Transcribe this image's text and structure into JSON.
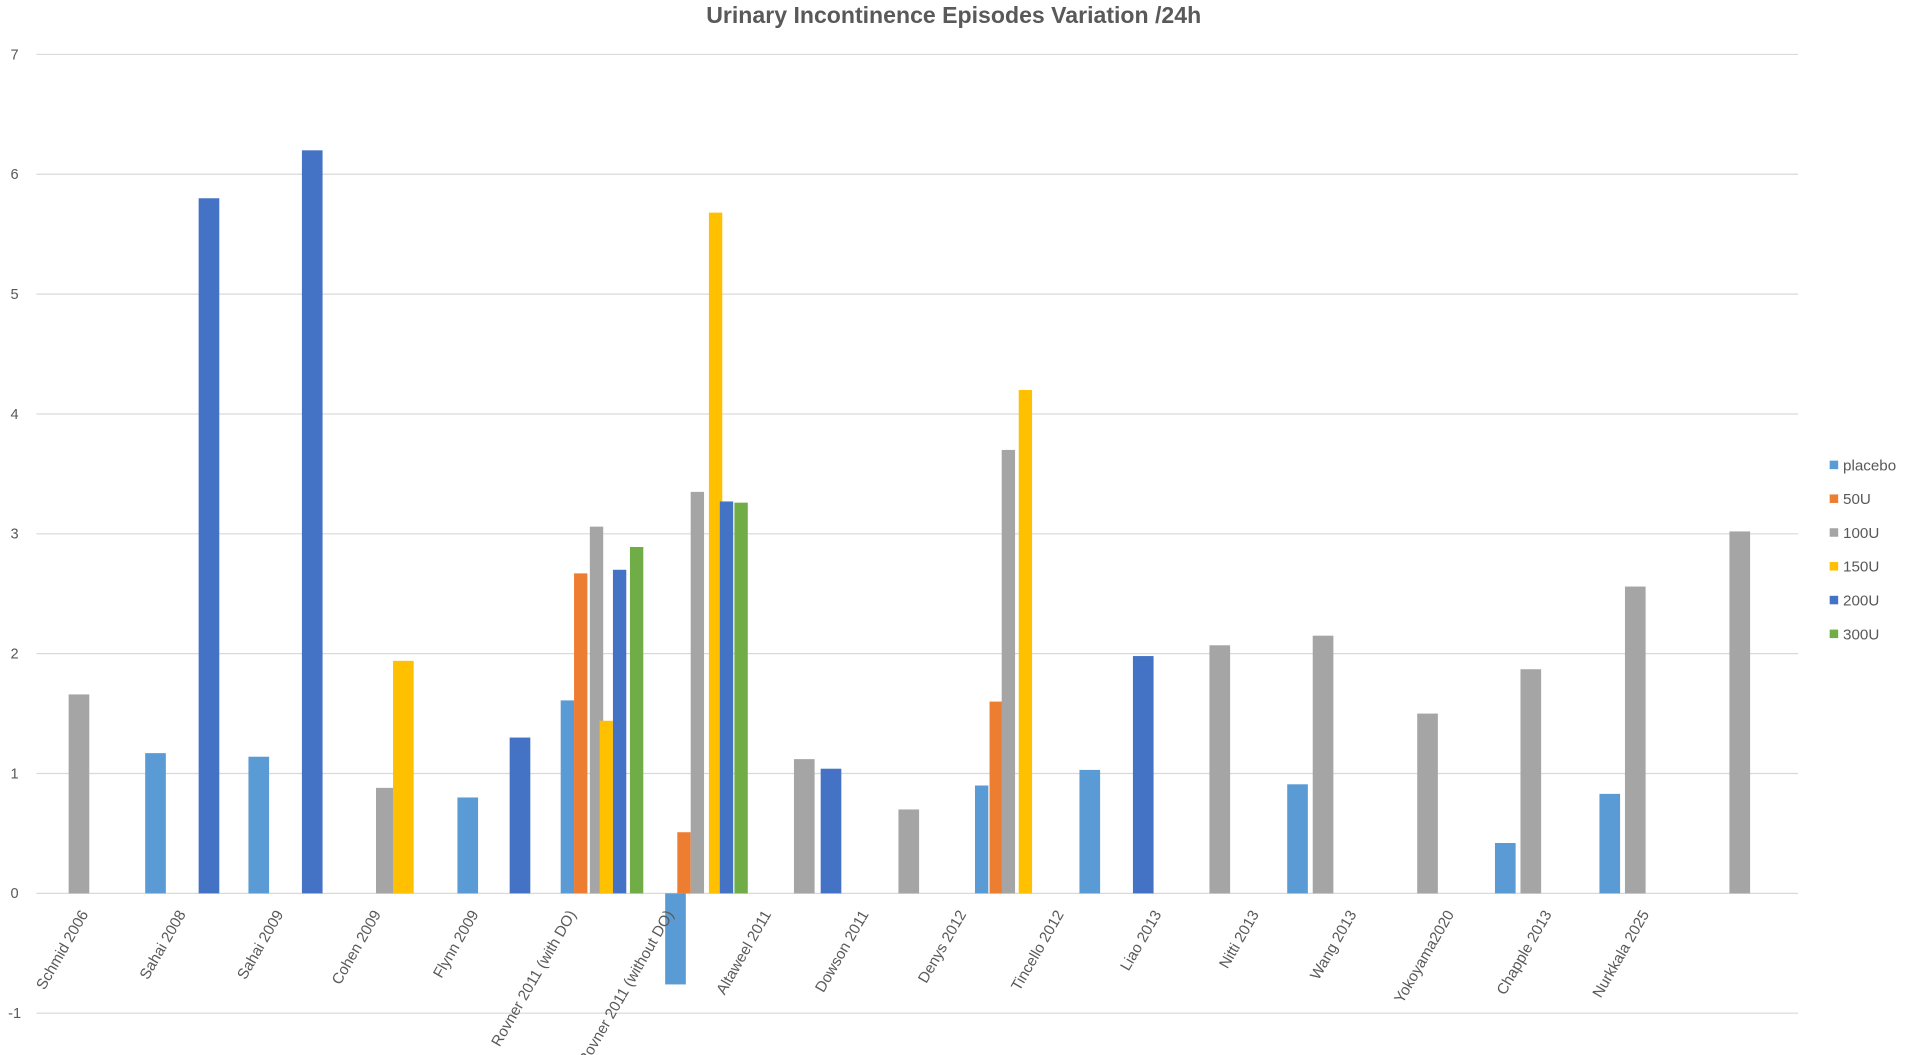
{
  "chart_data": {
    "type": "bar",
    "title": "Urinary Incontinence Episodes Variation /24h",
    "xlabel": "",
    "ylabel": "",
    "ylim": [
      -1,
      7
    ],
    "yticks": [
      "-1",
      "0",
      "1",
      "2",
      "3",
      "4",
      "5",
      "6",
      "7"
    ],
    "grid": true,
    "legend_position": "right",
    "categories": [
      "Schmid 2006",
      "Sahai 2008",
      "Sahai 2009",
      "Cohen 2009",
      "Flynn 2009",
      "Rovner 2011 (with DO)",
      "Rovner 2011 (without DO)",
      "Altaweel 2011",
      "Dowson 2011",
      "Denys 2012",
      "Tincello 2012",
      "Liao 2013",
      "Nitti 2013",
      "Wang 2013",
      "Yokoyama2020",
      "Chapple 2013",
      "Nurkkala 2025"
    ],
    "series": [
      {
        "name": "placebo",
        "color": "#5B9BD5",
        "values": [
          null,
          1.17,
          1.14,
          null,
          0.8,
          1.61,
          -0.76,
          null,
          null,
          0.9,
          1.03,
          null,
          0.91,
          null,
          0.42,
          0.83,
          null
        ]
      },
      {
        "name": "50U",
        "color": "#ED7D31",
        "values": [
          null,
          null,
          null,
          null,
          null,
          2.67,
          0.51,
          null,
          null,
          1.6,
          null,
          null,
          null,
          null,
          null,
          null,
          null
        ]
      },
      {
        "name": "100U",
        "color": "#A5A5A5",
        "values": [
          1.66,
          null,
          null,
          0.88,
          null,
          3.06,
          3.35,
          1.12,
          0.7,
          3.7,
          null,
          2.07,
          2.15,
          1.5,
          1.87,
          2.56,
          3.02
        ]
      },
      {
        "name": "150U",
        "color": "#FFC000",
        "values": [
          null,
          null,
          null,
          1.94,
          null,
          1.44,
          5.68,
          null,
          null,
          4.2,
          null,
          null,
          null,
          null,
          null,
          null,
          null
        ]
      },
      {
        "name": "200U",
        "color": "#4472C4",
        "values": [
          null,
          5.8,
          6.2,
          null,
          1.3,
          2.7,
          3.27,
          1.04,
          null,
          null,
          1.98,
          null,
          null,
          null,
          null,
          null,
          null
        ]
      },
      {
        "name": "300U",
        "color": "#70AD47",
        "values": [
          null,
          null,
          null,
          null,
          null,
          2.89,
          3.26,
          null,
          null,
          null,
          null,
          null,
          null,
          null,
          null,
          null,
          null
        ]
      }
    ]
  }
}
